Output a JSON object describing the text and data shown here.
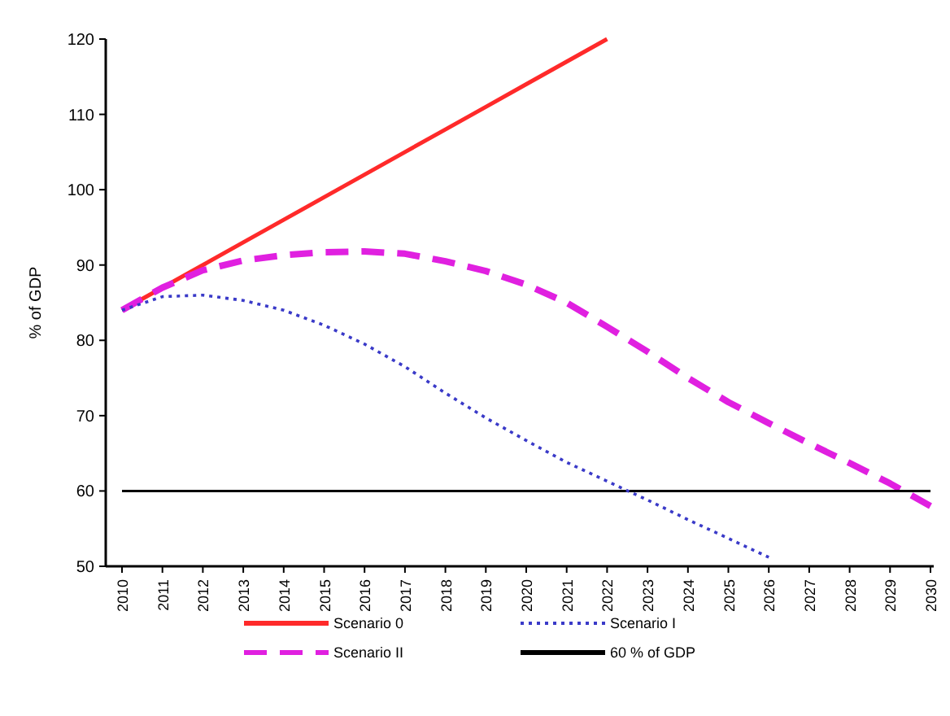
{
  "chart_data": {
    "type": "line",
    "ylabel": "% of GDP",
    "categories": [
      "2010",
      "2011",
      "2012",
      "2013",
      "2014",
      "2015",
      "2016",
      "2017",
      "2018",
      "2019",
      "2020",
      "2021",
      "2022",
      "2023",
      "2024",
      "2025",
      "2026",
      "2027",
      "2028",
      "2029",
      "2030"
    ],
    "ylim": [
      50,
      120
    ],
    "yticks": [
      50,
      60,
      70,
      80,
      90,
      100,
      110,
      120
    ],
    "grid": false,
    "legend": "bottom",
    "marker": "none",
    "series": [
      {
        "name": "Scenario 0",
        "color": "#ff2a2a",
        "line_style": "solid",
        "values": [
          84,
          87,
          90,
          93,
          96,
          99,
          102,
          105,
          108,
          111,
          114,
          117,
          120,
          null,
          null,
          null,
          null,
          null,
          null,
          null,
          null
        ]
      },
      {
        "name": "Scenario I",
        "color": "#3a3ac8",
        "line_style": "dotted",
        "values": [
          84,
          85.8,
          86,
          85.3,
          84,
          82,
          79.5,
          76.5,
          73,
          69.7,
          66.7,
          63.8,
          61.3,
          58.8,
          56.2,
          53.7,
          51.2,
          null,
          null,
          null,
          null
        ]
      },
      {
        "name": "Scenario II",
        "color": "#e020e0",
        "line_style": "dashed",
        "values": [
          84,
          87,
          89.3,
          90.6,
          91.3,
          91.7,
          91.8,
          91.5,
          90.5,
          89.2,
          87.4,
          85,
          81.8,
          78.5,
          75,
          71.8,
          69,
          66.3,
          63.7,
          61,
          58
        ]
      },
      {
        "name": "60 % of GDP",
        "color": "#000000",
        "line_style": "solid",
        "values": [
          60,
          60,
          60,
          60,
          60,
          60,
          60,
          60,
          60,
          60,
          60,
          60,
          60,
          60,
          60,
          60,
          60,
          60,
          60,
          60,
          60
        ]
      }
    ]
  }
}
